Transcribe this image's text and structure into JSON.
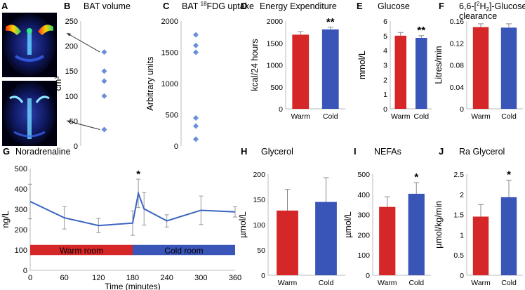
{
  "colors": {
    "warm": "#d62728",
    "cold": "#3a55b8",
    "line": "#3a64c0",
    "scatter": "#6a8fd6",
    "axis": "#bbbbbb"
  },
  "scan": {
    "label": "A"
  },
  "chart_data": [
    {
      "id": "bat-volume",
      "letter": "B",
      "type": "scatter",
      "title": "BAT volume",
      "ylabel": "cm³",
      "ylim": [
        0,
        250
      ],
      "yticks": [
        0,
        50,
        100,
        150,
        200,
        250
      ],
      "values": [
        188,
        150,
        130,
        100,
        33
      ]
    },
    {
      "id": "bat-fdg",
      "letter": "C",
      "type": "scatter",
      "title_prefix": "BAT ",
      "title_sup": "18",
      "title_suffix": "FDG uptake",
      "ylabel": "Arbitrary units",
      "ylim": [
        0,
        2000
      ],
      "yticks": [
        0,
        500,
        1000,
        1500,
        2000
      ],
      "values": [
        1780,
        1610,
        1500,
        450,
        320,
        110
      ]
    },
    {
      "id": "energy",
      "letter": "D",
      "type": "bar",
      "title": "Energy Expenditure",
      "ylabel": "kcal/24 hours",
      "ylim": [
        0,
        2000
      ],
      "yticks": [
        0,
        500,
        1000,
        1500,
        2000
      ],
      "categories": [
        "Warm",
        "Cold"
      ],
      "values": [
        1690,
        1810
      ],
      "errors": [
        70,
        50
      ],
      "significance": [
        "",
        "**"
      ]
    },
    {
      "id": "glucose",
      "letter": "E",
      "type": "bar",
      "title": "Glucose",
      "ylabel": "mmol/L",
      "ylim": [
        0,
        6
      ],
      "yticks": [
        0,
        1,
        2,
        3,
        4,
        5,
        6
      ],
      "categories": [
        "Warm",
        "Cold"
      ],
      "values": [
        5.0,
        4.85
      ],
      "errors": [
        0.22,
        0.15
      ],
      "significance": [
        "",
        "**"
      ]
    },
    {
      "id": "glucose-clearance",
      "letter": "F",
      "type": "bar",
      "title_line1_prefix": "6,6-[",
      "title_line1_sup": "2",
      "title_line1_mid": "H",
      "title_line1_sub": "2",
      "title_line1_suffix": "]-Glucose",
      "title_line2": "clearance",
      "ylabel": "Litres/min",
      "ylim": [
        0,
        0.16
      ],
      "yticks": [
        "0",
        "0.04",
        "0.08",
        "0.12",
        "0.16"
      ],
      "categories": [
        "Warm",
        "Cold"
      ],
      "values": [
        0.149,
        0.148
      ],
      "errors": [
        0.006,
        0.007
      ],
      "significance": [
        "",
        ""
      ]
    },
    {
      "id": "noradrenaline",
      "letter": "G",
      "type": "line",
      "title": "Noradrenaline",
      "xlabel": "Time (minutes)",
      "ylabel": "ng/L",
      "xlim": [
        0,
        360
      ],
      "ylim": [
        0,
        500
      ],
      "xticks": [
        0,
        60,
        120,
        180,
        240,
        300,
        360
      ],
      "yticks": [
        0,
        100,
        200,
        300,
        400,
        500
      ],
      "x": [
        0,
        60,
        120,
        180,
        190,
        200,
        240,
        300,
        360
      ],
      "y": [
        338,
        258,
        220,
        232,
        378,
        302,
        243,
        295,
        287
      ],
      "errors": [
        85,
        55,
        35,
        60,
        70,
        80,
        30,
        70,
        25
      ],
      "annotation": "*",
      "phases": [
        {
          "label": "Warm room",
          "start": 0,
          "end": 180
        },
        {
          "label": "Cold room",
          "start": 180,
          "end": 360
        }
      ]
    },
    {
      "id": "glycerol",
      "letter": "H",
      "type": "bar",
      "title": "Glycerol",
      "ylabel": "µmol/L",
      "ylim": [
        0,
        200
      ],
      "yticks": [
        0,
        50,
        100,
        150,
        200
      ],
      "categories": [
        "Warm",
        "Cold"
      ],
      "values": [
        128,
        145
      ],
      "errors": [
        42,
        48
      ],
      "significance": [
        "",
        ""
      ]
    },
    {
      "id": "nefas",
      "letter": "I",
      "type": "bar",
      "title": "NEFAs",
      "ylabel": "µmol/L",
      "ylim": [
        0,
        500
      ],
      "yticks": [
        0,
        100,
        200,
        300,
        400,
        500
      ],
      "categories": [
        "Warm",
        "Cold"
      ],
      "values": [
        338,
        403
      ],
      "errors": [
        50,
        55
      ],
      "significance": [
        "",
        "*"
      ]
    },
    {
      "id": "ra-glycerol",
      "letter": "J",
      "type": "bar",
      "title": "Ra Glycerol",
      "ylabel": "µmol/kg/min",
      "ylim": [
        0,
        2.5
      ],
      "yticks": [
        "0",
        "0.5",
        "1",
        "1.5",
        "2",
        "2.5"
      ],
      "categories": [
        "Warm",
        "Cold"
      ],
      "values": [
        1.45,
        1.93
      ],
      "errors": [
        0.3,
        0.42
      ],
      "significance": [
        "",
        "*"
      ]
    }
  ]
}
